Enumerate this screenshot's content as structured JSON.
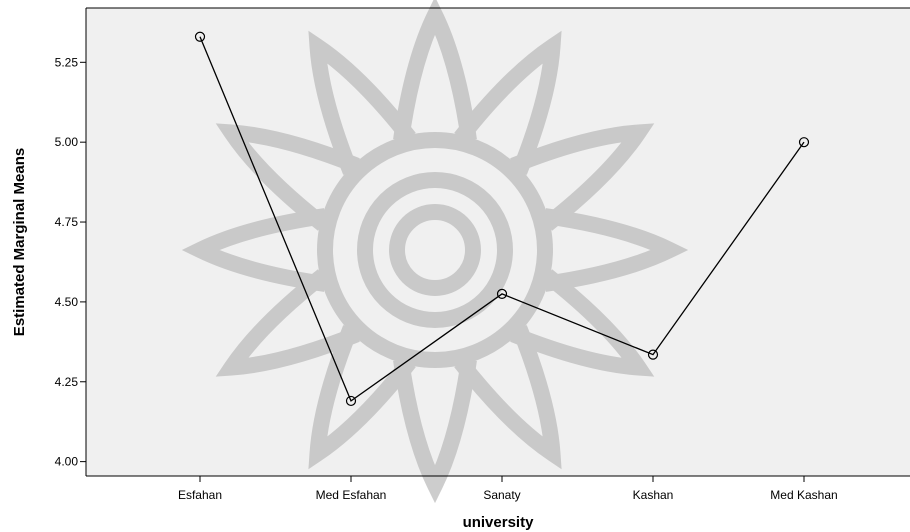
{
  "chart_data": {
    "type": "line",
    "categories": [
      "Esfahan",
      "Med Esfahan",
      "Sanaty",
      "Kashan",
      "Med Kashan"
    ],
    "series": [
      {
        "values": [
          5.33,
          4.19,
          4.525,
          4.335,
          5.0
        ]
      }
    ],
    "title": "",
    "xlabel": "university",
    "ylabel": "Estimated Marginal Means",
    "ylim": [
      3.955,
      5.42
    ],
    "yticks": [
      4.0,
      4.25,
      4.5,
      4.75,
      5.0,
      5.25
    ],
    "ytick_labels": [
      "4.00",
      "4.25",
      "4.50",
      "4.75",
      "5.00",
      "5.25"
    ],
    "grid": false,
    "legend": "none",
    "colors": {
      "line": "#000000",
      "plot_bg": "#f0f0f0",
      "watermark": "#bdbdbd"
    }
  }
}
